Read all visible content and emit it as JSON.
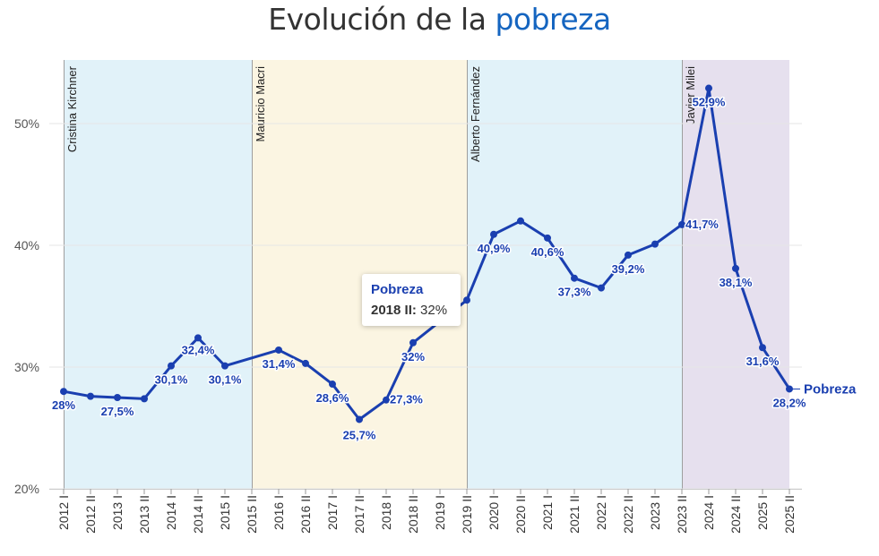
{
  "title": {
    "prefix": "Evolución de la",
    "highlight": "pobreza"
  },
  "colors": {
    "line": "#1a3fb0",
    "highlight": "#1565c0",
    "band_blue": "#e1f2f9",
    "band_yellow": "#fbf5e2",
    "band_purple": "#e6e0ee"
  },
  "tooltip": {
    "series": "Pobreza",
    "category": "2018 II:",
    "value": "32%"
  },
  "chart_data": {
    "type": "line",
    "title": "Evolución de la pobreza",
    "series_name": "Pobreza",
    "categories": [
      "2012 I",
      "2012 II",
      "2013 I",
      "2013 II",
      "2014 I",
      "2014 II",
      "2015 I",
      "2015 II",
      "2016 I",
      "2016 II",
      "2017 I",
      "2017 II",
      "2018 I",
      "2018 II",
      "2019 I",
      "2019 II",
      "2020 I",
      "2020 II",
      "2021 I",
      "2021 II",
      "2022 I",
      "2022 II",
      "2023 I",
      "2023 II",
      "2024 I",
      "2024 II",
      "2025 I",
      "2025 II"
    ],
    "values": [
      28.0,
      27.6,
      27.5,
      27.4,
      30.1,
      32.4,
      30.1,
      null,
      31.4,
      30.3,
      28.6,
      25.7,
      27.3,
      32.0,
      null,
      35.5,
      40.9,
      42.0,
      40.6,
      37.3,
      36.5,
      39.2,
      40.1,
      41.7,
      52.9,
      38.1,
      31.6,
      28.2
    ],
    "data_labels": [
      {
        "i": 0,
        "text": "28%"
      },
      {
        "i": 2,
        "text": "27,5%"
      },
      {
        "i": 4,
        "text": "30,1%"
      },
      {
        "i": 5,
        "text": "32,4%"
      },
      {
        "i": 6,
        "text": "30,1%"
      },
      {
        "i": 8,
        "text": "31,4%"
      },
      {
        "i": 10,
        "text": "28,6%"
      },
      {
        "i": 11,
        "text": "25,7%"
      },
      {
        "i": 12,
        "text": "27,3%"
      },
      {
        "i": 13,
        "text": "32%"
      },
      {
        "i": 16,
        "text": "40,9%"
      },
      {
        "i": 18,
        "text": "40,6%"
      },
      {
        "i": 19,
        "text": "37,3%"
      },
      {
        "i": 21,
        "text": "39,2%"
      },
      {
        "i": 23,
        "text": "41,7%"
      },
      {
        "i": 24,
        "text": "52,9%"
      },
      {
        "i": 25,
        "text": "38,1%"
      },
      {
        "i": 26,
        "text": "31,6%"
      },
      {
        "i": 27,
        "text": "28,2%"
      }
    ],
    "y_ticks": [
      {
        "value": 20,
        "label": "20%"
      },
      {
        "value": 30,
        "label": "30%"
      },
      {
        "value": 40,
        "label": "40%"
      },
      {
        "value": 50,
        "label": "50%"
      }
    ],
    "ylim": [
      20,
      55
    ],
    "periods": [
      {
        "label": "Cristina Kirchner",
        "start": 0,
        "end": 7,
        "color": "#e1f2f9"
      },
      {
        "label": "Mauricio Macri",
        "start": 7,
        "end": 15,
        "color": "#fbf5e2"
      },
      {
        "label": "Alberto Fernández",
        "start": 15,
        "end": 23,
        "color": "#e1f2f9"
      },
      {
        "label": "Javier Milei",
        "start": 23,
        "end": 27,
        "color": "#e6e0ee"
      }
    ],
    "grid": true,
    "xlabel": "",
    "ylabel": ""
  }
}
